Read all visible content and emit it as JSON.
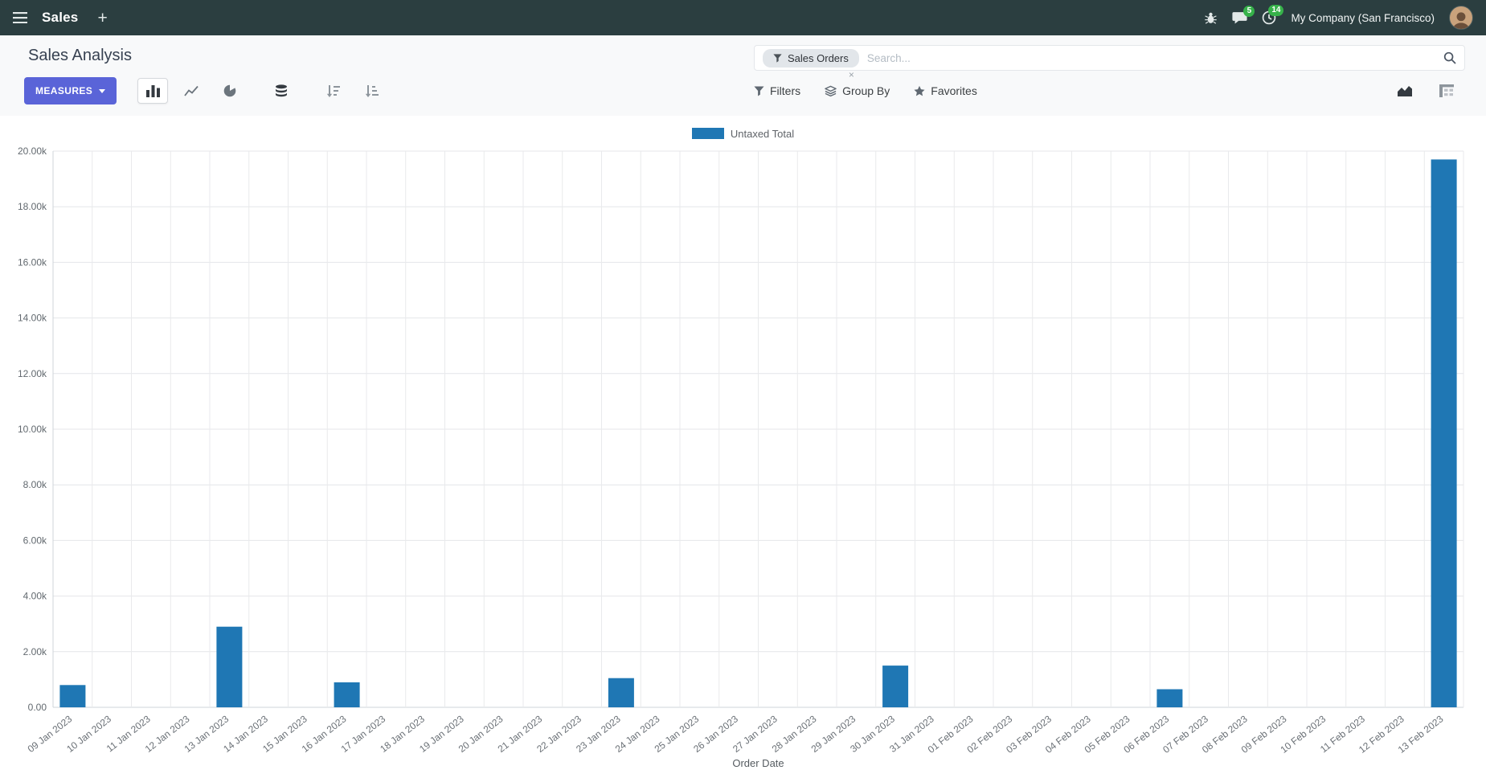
{
  "navbar": {
    "app_name": "Sales",
    "plus": "+",
    "messages_badge": "5",
    "activities_badge": "14",
    "company": "My Company (San Francisco)"
  },
  "control_panel": {
    "title": "Sales Analysis",
    "measures_label": "MEASURES",
    "filters_label": "Filters",
    "group_by_label": "Group By",
    "favorites_label": "Favorites",
    "search": {
      "facet_label": "Sales Orders",
      "remove_facet": "×",
      "placeholder": "Search..."
    }
  },
  "chart_data": {
    "type": "bar",
    "title": "",
    "legend": "Untaxed Total",
    "series_color": "#1f77b4",
    "xlabel": "Order Date",
    "ylabel": "",
    "ylim": [
      0,
      20000
    ],
    "grid": true,
    "legend_position": "top",
    "ytick_labels": [
      "0.00",
      "2.00k",
      "4.00k",
      "6.00k",
      "8.00k",
      "10.00k",
      "12.00k",
      "14.00k",
      "16.00k",
      "18.00k",
      "20.00k"
    ],
    "categories": [
      "09 Jan 2023",
      "10 Jan 2023",
      "11 Jan 2023",
      "12 Jan 2023",
      "13 Jan 2023",
      "14 Jan 2023",
      "15 Jan 2023",
      "16 Jan 2023",
      "17 Jan 2023",
      "18 Jan 2023",
      "19 Jan 2023",
      "20 Jan 2023",
      "21 Jan 2023",
      "22 Jan 2023",
      "23 Jan 2023",
      "24 Jan 2023",
      "25 Jan 2023",
      "26 Jan 2023",
      "27 Jan 2023",
      "28 Jan 2023",
      "29 Jan 2023",
      "30 Jan 2023",
      "31 Jan 2023",
      "01 Feb 2023",
      "02 Feb 2023",
      "03 Feb 2023",
      "04 Feb 2023",
      "05 Feb 2023",
      "06 Feb 2023",
      "07 Feb 2023",
      "08 Feb 2023",
      "09 Feb 2023",
      "10 Feb 2023",
      "11 Feb 2023",
      "12 Feb 2023",
      "13 Feb 2023"
    ],
    "values": [
      800,
      0,
      0,
      0,
      2900,
      0,
      0,
      900,
      0,
      0,
      0,
      0,
      0,
      0,
      1050,
      0,
      0,
      0,
      0,
      0,
      0,
      1500,
      0,
      0,
      0,
      0,
      0,
      0,
      650,
      0,
      0,
      0,
      0,
      0,
      0,
      19700
    ]
  }
}
